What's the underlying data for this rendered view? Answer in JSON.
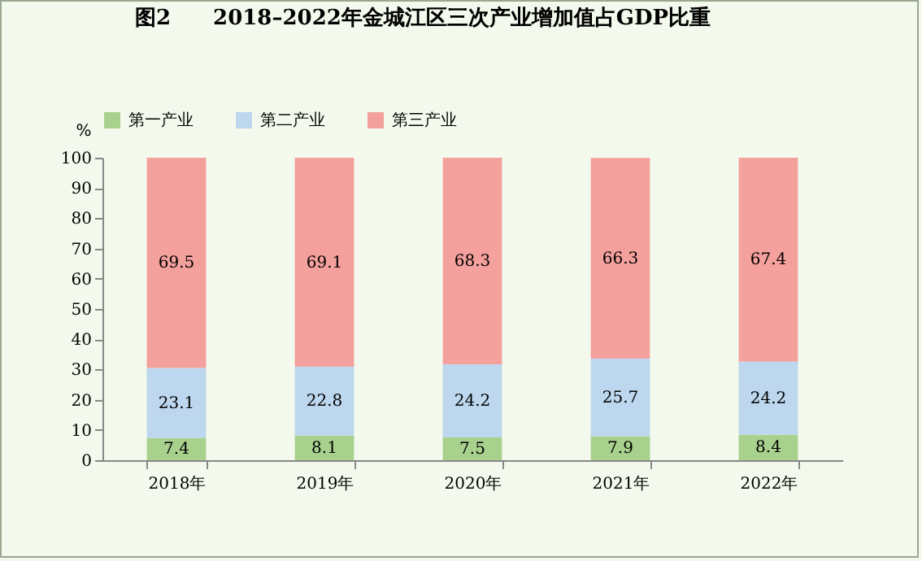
{
  "chart_data": {
    "type": "bar",
    "title": "图2　　2018–2022年金城江区三次产业增加值占GDP比重",
    "ylabel": "%",
    "categories": [
      "2018年",
      "2019年",
      "2020年",
      "2021年",
      "2022年"
    ],
    "series": [
      {
        "name": "第一产业",
        "color": "#a9d18e",
        "values": [
          7.4,
          8.1,
          7.5,
          7.9,
          8.4
        ]
      },
      {
        "name": "第二产业",
        "color": "#bdd7ee",
        "values": [
          23.1,
          22.8,
          24.2,
          25.7,
          24.2
        ]
      },
      {
        "name": "第三产业",
        "color": "#f4a09c",
        "values": [
          69.5,
          69.1,
          68.3,
          66.3,
          67.4
        ]
      }
    ],
    "stacked": true,
    "ylim": [
      0,
      100
    ],
    "yticks": [
      0,
      10,
      20,
      30,
      40,
      50,
      60,
      70,
      80,
      90,
      100
    ],
    "data_labels": true,
    "legend": "top",
    "grid": false
  }
}
